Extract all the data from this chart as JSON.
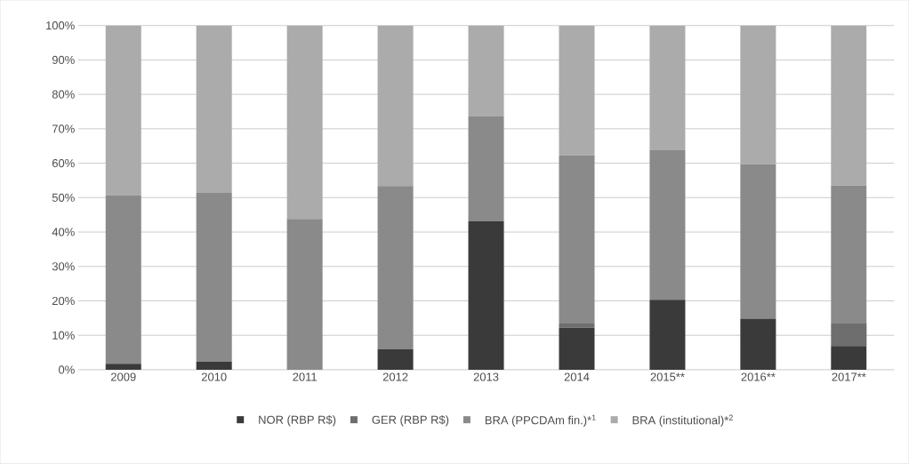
{
  "chart_data": {
    "type": "bar",
    "stacked": true,
    "grid": "y",
    "legend": "bottom",
    "categories": [
      "2009",
      "2010",
      "2011",
      "2012",
      "2013",
      "2014",
      "2015**",
      "2016**",
      "2017**"
    ],
    "series": [
      {
        "name": "NOR (RBP R$)",
        "color": "#3a3a3a",
        "values": [
          1.7,
          2.4,
          0,
          5.9,
          43.1,
          12.2,
          20.3,
          14.8,
          6.9
        ]
      },
      {
        "name": "GER (RBP R$)",
        "color": "#6e6e6e",
        "values": [
          0,
          0,
          0,
          0,
          0,
          1.2,
          0,
          0,
          6.7
        ]
      },
      {
        "name": "BRA (PPCDAm fin.)*$^{1}$",
        "color": "#8a8a8a",
        "values": [
          49.0,
          49.0,
          43.8,
          47.5,
          30.6,
          48.9,
          43.5,
          44.9,
          39.9
        ]
      },
      {
        "name": "BRA (institutional)*$^{2}$",
        "color": "#ababab",
        "values": [
          49.3,
          48.6,
          56.2,
          46.6,
          26.3,
          37.7,
          36.2,
          40.3,
          46.5
        ]
      }
    ],
    "ylim": [
      0,
      100
    ],
    "yticks": [
      {
        "value": 0,
        "label": "0%"
      },
      {
        "value": 10,
        "label": "10%"
      },
      {
        "value": 20,
        "label": "20%"
      },
      {
        "value": 30,
        "label": "30%"
      },
      {
        "value": 40,
        "label": "40%"
      },
      {
        "value": 50,
        "label": "50%"
      },
      {
        "value": 60,
        "label": "60%"
      },
      {
        "value": 70,
        "label": "70%"
      },
      {
        "value": 80,
        "label": "80%"
      },
      {
        "value": 90,
        "label": "90%"
      },
      {
        "value": 100,
        "label": "100%"
      }
    ]
  }
}
